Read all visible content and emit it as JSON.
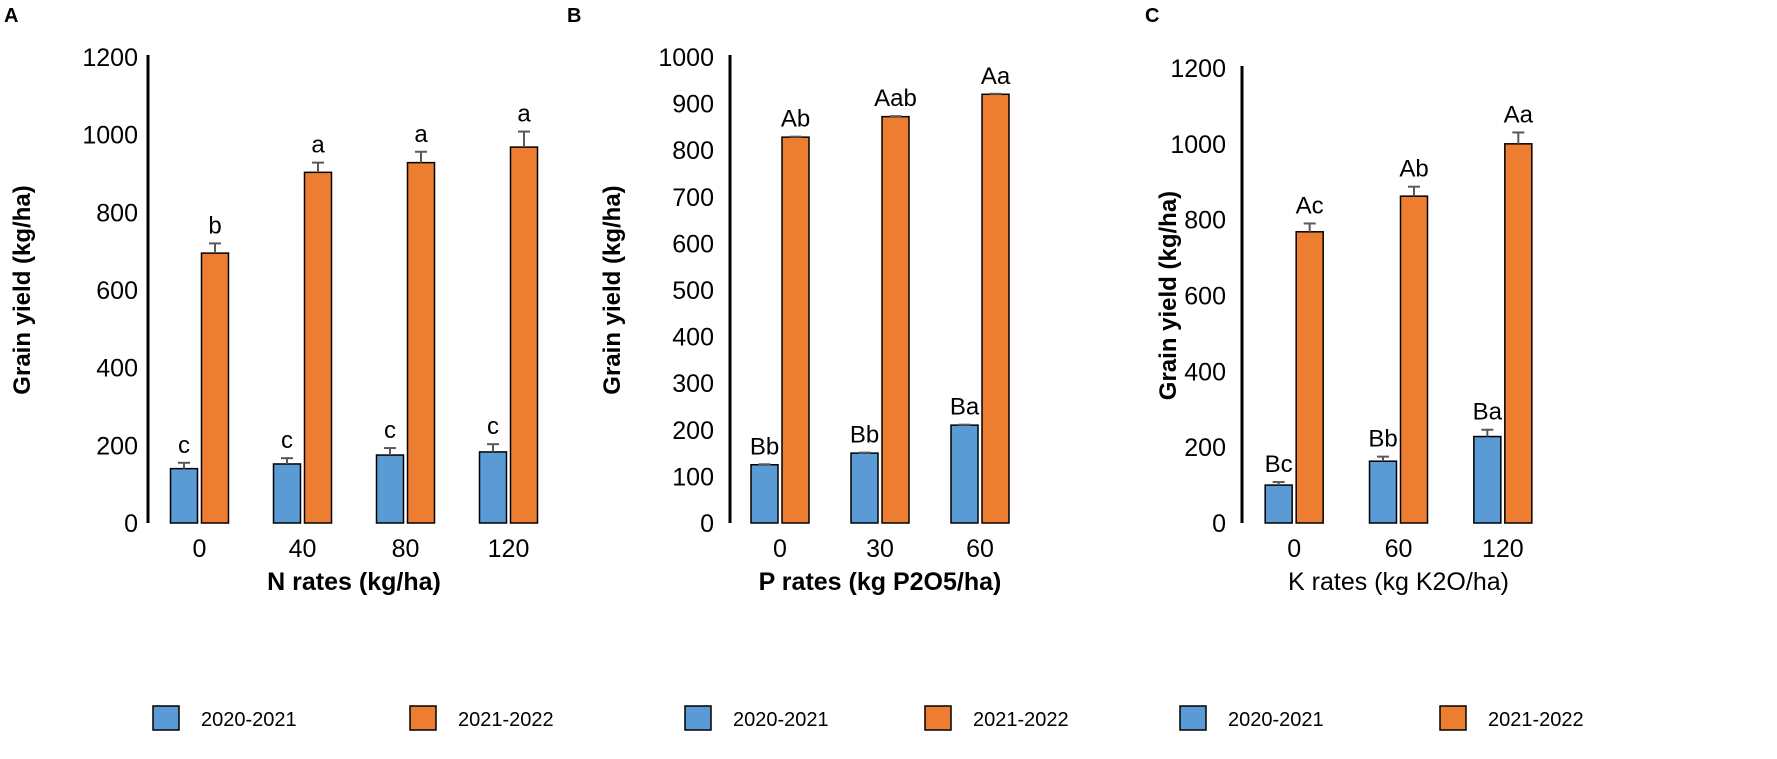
{
  "colors": {
    "series1": "#5b9bd5",
    "series2": "#ed7d31",
    "error": "#595959"
  },
  "chart_data": [
    {
      "panel": "A",
      "type": "bar",
      "title": "",
      "xlabel": "N rates (kg/ha)",
      "xlabel_bold": true,
      "ylabel": "Grain yield (kg/ha)",
      "ylim": [
        0,
        1200
      ],
      "yticks": [
        0,
        200,
        400,
        600,
        800,
        1000,
        1200
      ],
      "categories": [
        "0",
        "40",
        "80",
        "120"
      ],
      "series": [
        {
          "name": "2020-2021",
          "values": [
            140,
            152,
            175,
            183
          ],
          "errors": [
            15,
            15,
            18,
            20
          ],
          "labels": [
            "c",
            "c",
            "c",
            "c"
          ]
        },
        {
          "name": "2021-2022",
          "values": [
            695,
            903,
            928,
            968
          ],
          "errors": [
            25,
            25,
            28,
            40
          ],
          "labels": [
            "b",
            "a",
            "a",
            "a"
          ]
        }
      ],
      "legend": "bottom"
    },
    {
      "panel": "B",
      "type": "bar",
      "title": "",
      "xlabel": "P rates (kg P2O5/ha)",
      "xlabel_bold": true,
      "ylabel": "Grain yield (kg/ha)",
      "ylim": [
        0,
        1000
      ],
      "yticks": [
        0,
        100,
        200,
        300,
        400,
        500,
        600,
        700,
        800,
        900,
        1000
      ],
      "categories": [
        "0",
        "30",
        "60"
      ],
      "series": [
        {
          "name": "2020-2021",
          "values": [
            125,
            150,
            210
          ],
          "errors": [
            1,
            1,
            1
          ],
          "labels": [
            "Bb",
            "Bb",
            "Ba"
          ]
        },
        {
          "name": "2021-2022",
          "values": [
            828,
            872,
            920
          ],
          "errors": [
            1,
            1,
            1
          ],
          "labels": [
            "Ab",
            "Aab",
            "Aa"
          ]
        }
      ],
      "legend": "bottom"
    },
    {
      "panel": "C",
      "type": "bar",
      "title": "",
      "xlabel": "K rates (kg K2O/ha)",
      "xlabel_bold": false,
      "ylabel": "Grain yield (kg/ha)",
      "ylim": [
        0,
        1200
      ],
      "yticks": [
        0,
        200,
        400,
        600,
        800,
        1000,
        1200
      ],
      "categories": [
        "0",
        "60",
        "120"
      ],
      "series": [
        {
          "name": "2020-2021",
          "values": [
            100,
            163,
            228
          ],
          "errors": [
            8,
            12,
            18
          ],
          "labels": [
            "Bc",
            "Bb",
            "Ba"
          ]
        },
        {
          "name": "2021-2022",
          "values": [
            768,
            862,
            1000
          ],
          "errors": [
            22,
            25,
            30
          ],
          "labels": [
            "Ac",
            "Ab",
            "Aa"
          ]
        }
      ],
      "legend": "bottom"
    }
  ]
}
